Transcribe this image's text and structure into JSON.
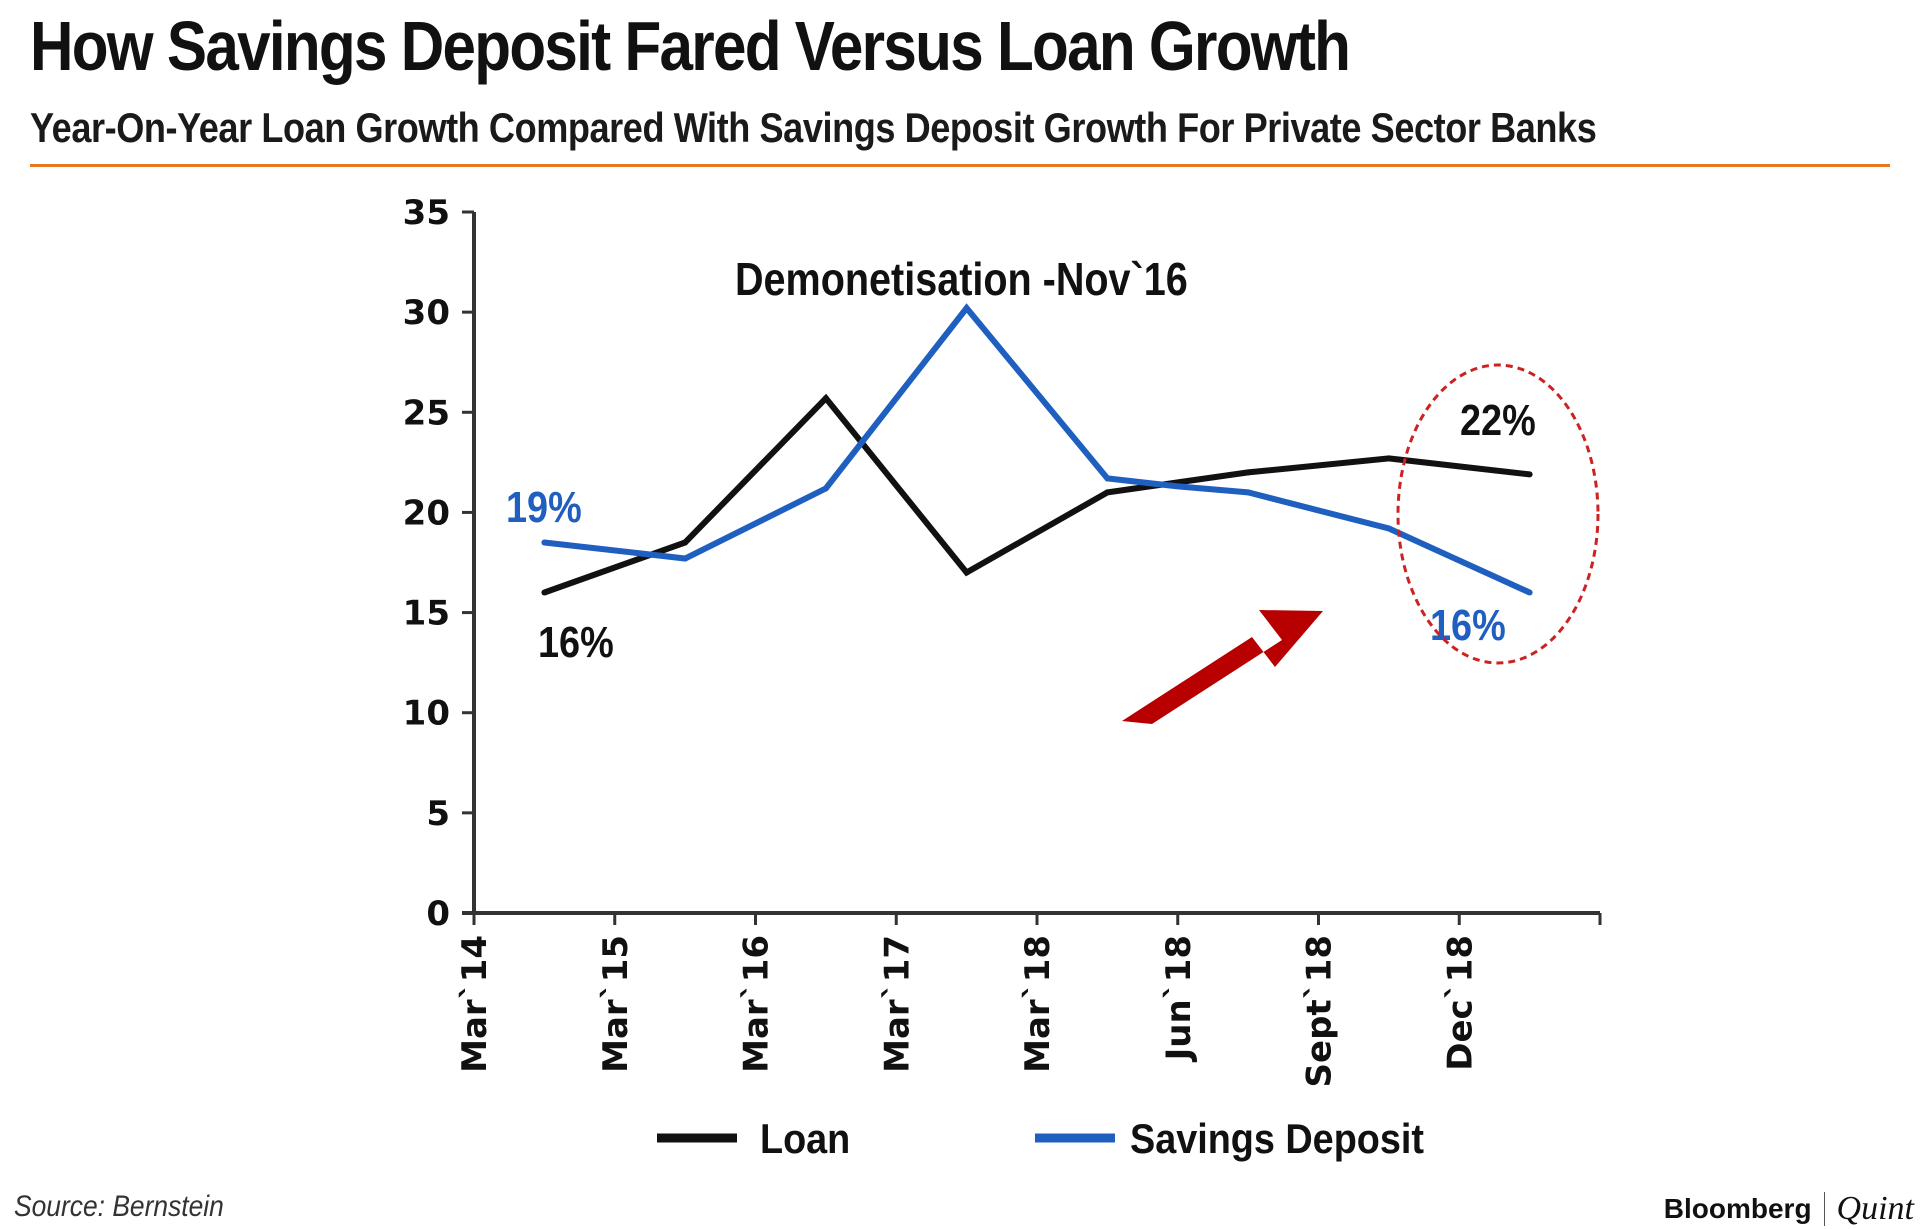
{
  "header": {
    "title": "How Savings Deposit Fared Versus Loan Growth",
    "subtitle": "Year-On-Year Loan Growth Compared With Savings Deposit Growth For Private Sector Banks",
    "rule_color": "#e87722"
  },
  "footer": {
    "source": "Source: Bernstein",
    "brand_primary": "Bloomberg",
    "brand_secondary": "Quint"
  },
  "chart_data": {
    "type": "line",
    "title": "How Savings Deposit Fared Versus Loan Growth",
    "subtitle": "Year-On-Year Loan Growth Compared With Savings Deposit Growth For Private Sector Banks",
    "xlabel": "",
    "ylabel": "",
    "ylim": [
      0,
      35
    ],
    "y_ticks": [
      "0",
      "5",
      "10",
      "15",
      "20",
      "25",
      "30",
      "35"
    ],
    "x_ticks": [
      "Mar`14",
      "Mar`15",
      "Mar`16",
      "Mar`17",
      "Mar`18",
      "Jun`18",
      "Sept`18",
      "Dec`18"
    ],
    "grid": false,
    "legend_position": "bottom",
    "series": [
      {
        "name": "Loan",
        "color": "#111111",
        "values": [
          16,
          18.5,
          25.7,
          17,
          21,
          22,
          22.7,
          21.9
        ],
        "point_positions": [
          0.5,
          1.5,
          2.5,
          3.5,
          4.5,
          5.5,
          6.5,
          7.5
        ],
        "extra_points": [
          {
            "x": 5.0,
            "y": 21.5
          }
        ]
      },
      {
        "name": "Savings Deposit",
        "color": "#1f5fbf",
        "values": [
          18.5,
          17.7,
          21.2,
          30.2,
          21.7,
          21,
          19.2,
          16
        ],
        "point_positions": [
          0.5,
          1.5,
          2.5,
          3.5,
          4.5,
          5.5,
          6.5,
          7.5
        ],
        "extra_points": [
          {
            "x": 5.0,
            "y": 21.3
          }
        ]
      }
    ],
    "annotations": [
      {
        "text": "Demonetisation -Nov`16",
        "color": "#111111"
      },
      {
        "text": "19%",
        "color": "#1f5fbf"
      },
      {
        "text": "16%",
        "color": "#111111"
      },
      {
        "text": "22%",
        "color": "#111111"
      },
      {
        "text": "16%",
        "color": "#1f5fbf"
      }
    ],
    "highlight": {
      "shape": "dashed-ellipse",
      "color": "#cc2222"
    },
    "arrow": {
      "color": "#b80000"
    }
  }
}
